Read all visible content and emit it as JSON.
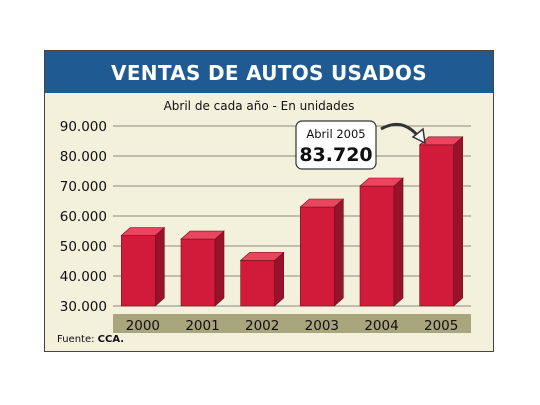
{
  "header": {
    "title": "VENTAS DE AUTOS USADOS"
  },
  "chart_data": {
    "type": "bar",
    "title": "VENTAS DE AUTOS USADOS",
    "subtitle": "Abril de cada año - En unidades",
    "categories": [
      "2000",
      "2001",
      "2002",
      "2003",
      "2004",
      "2005"
    ],
    "values": [
      53500,
      52300,
      45200,
      63000,
      70000,
      83720
    ],
    "ylim": [
      30000,
      90000
    ],
    "yticks": [
      "90.000",
      "80.000",
      "70.000",
      "60.000",
      "50.000",
      "40.000",
      "30.000"
    ],
    "ytick_values": [
      90000,
      80000,
      70000,
      60000,
      50000,
      40000,
      30000
    ],
    "grid": true,
    "bar_color": "#d21a3a",
    "annotation": {
      "label": "Abril 2005",
      "value": "83.720"
    }
  },
  "footer": {
    "source_label": "Fuente:",
    "source_value": "CCA."
  }
}
